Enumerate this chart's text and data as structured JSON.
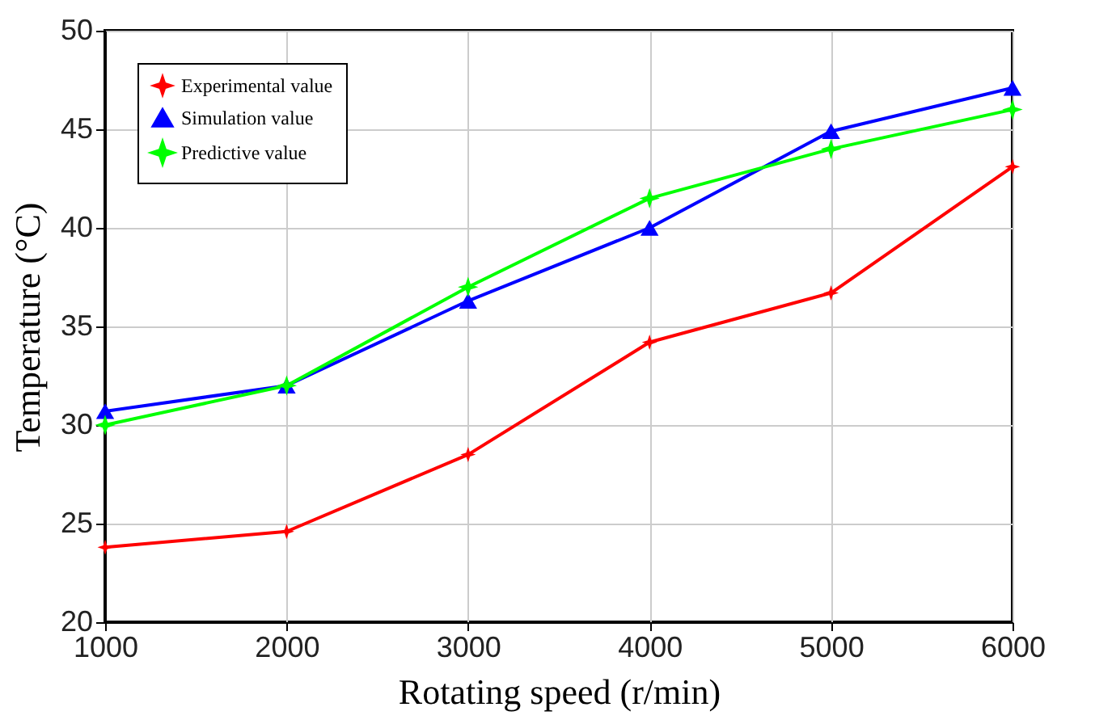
{
  "chart_data": {
    "type": "line",
    "xlabel": "Rotating speed   (r/min)",
    "ylabel": "Temperature   (°C)",
    "x": [
      1000,
      2000,
      3000,
      4000,
      5000,
      6000
    ],
    "series": [
      {
        "name": "Experimental value",
        "color": "#ff0000",
        "marker": "star",
        "values": [
          23.8,
          24.6,
          28.5,
          34.2,
          36.7,
          43.1
        ]
      },
      {
        "name": "Simulation value",
        "color": "#0000ff",
        "marker": "triangle",
        "values": [
          30.7,
          32.0,
          36.3,
          40.0,
          44.9,
          47.1
        ]
      },
      {
        "name": "Predictive value",
        "color": "#00ff00",
        "marker": "star",
        "values": [
          30.0,
          32.0,
          37.0,
          41.5,
          44.0,
          46.0
        ]
      }
    ],
    "xlim": [
      1000,
      6000
    ],
    "xticks": [
      1000,
      2000,
      3000,
      4000,
      5000,
      6000
    ],
    "ylim": [
      20,
      50
    ],
    "yticks": [
      20,
      25,
      30,
      35,
      40,
      45,
      50
    ],
    "grid": true,
    "legend": "top left",
    "line_style": "solid"
  }
}
